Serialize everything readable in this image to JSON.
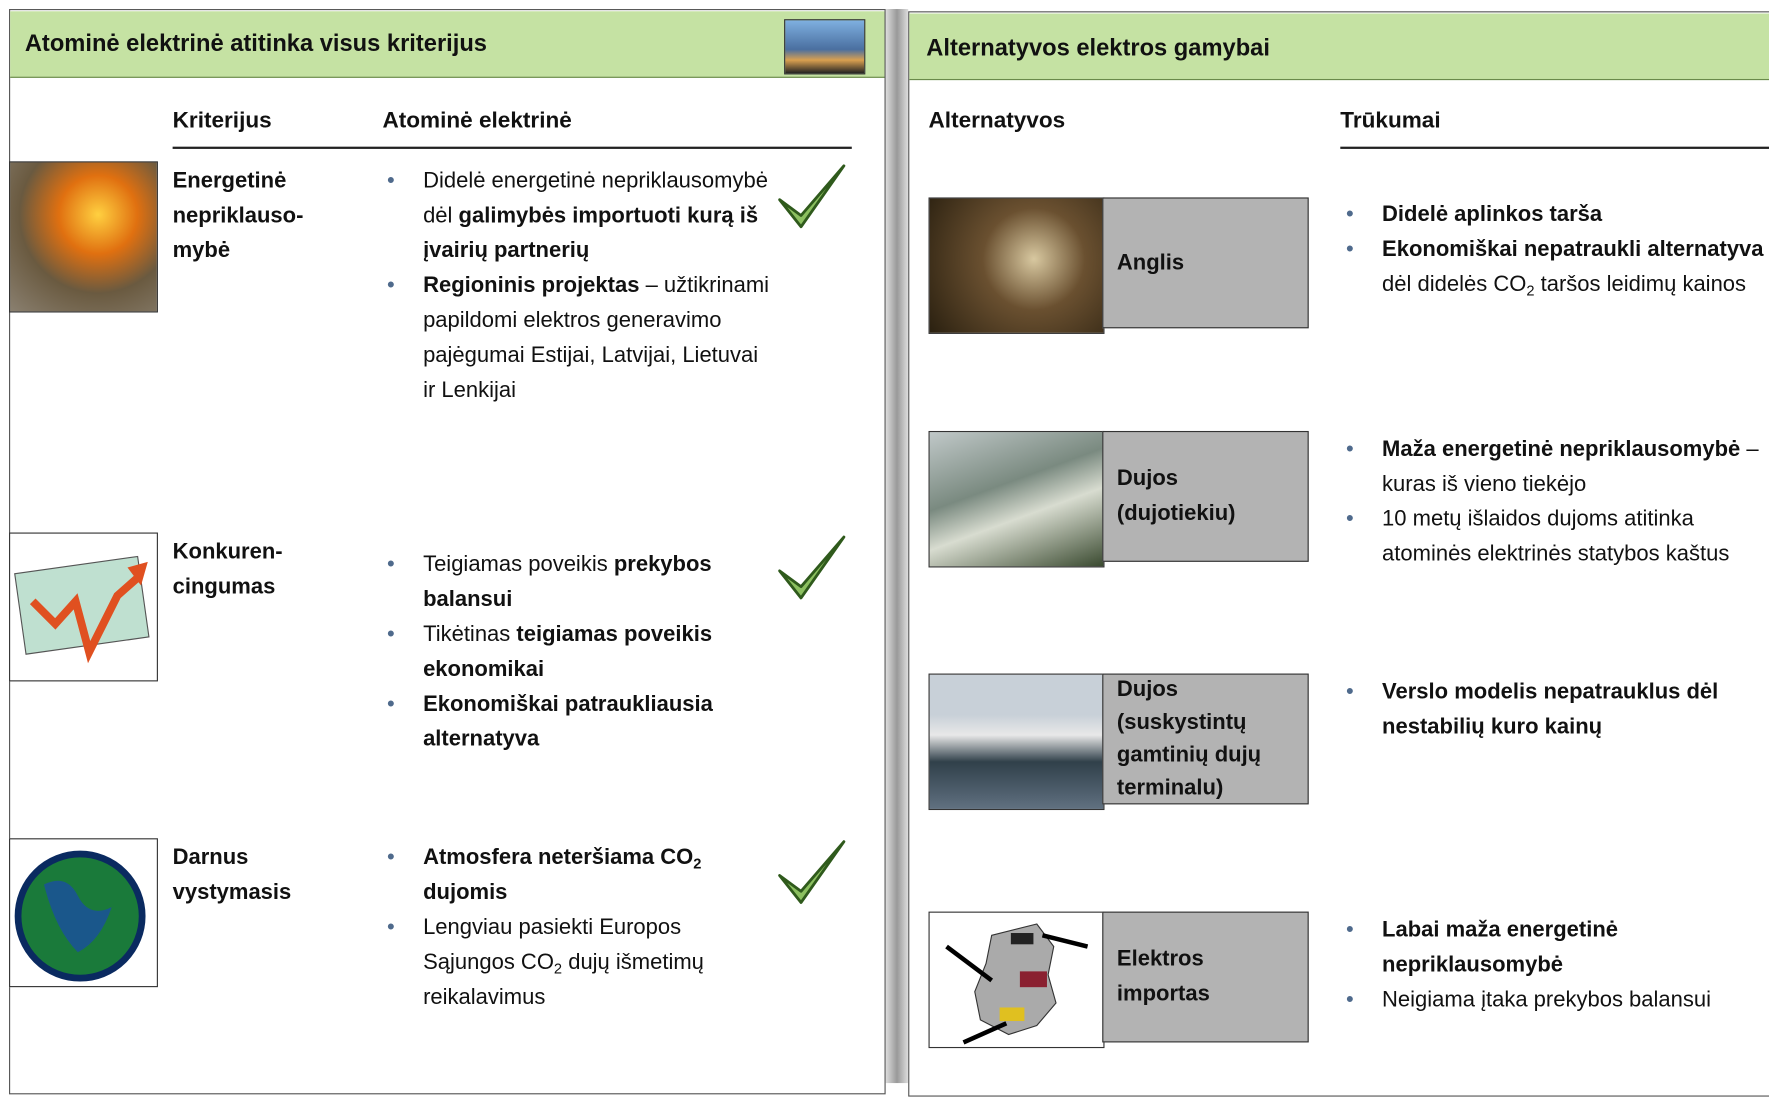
{
  "left": {
    "title": "Atominė elektrinė atitinka visus kriterijus",
    "headers": [
      "Kriterijus",
      "Atominė elektrinė"
    ],
    "rows": [
      {
        "criterion": [
          "Energetinė",
          "nepriklauso-",
          "mybė"
        ],
        "bullets": [
          [
            {
              "text": "Didelė energetinė nepriklausomybė dėl "
            },
            {
              "text": "galimybės importuoti kurą iš įvairių partnerių",
              "bold": true
            }
          ],
          [
            {
              "text": "Regioninis projektas",
              "bold": true
            },
            {
              "text": " – užtikrinami papildomi elektros generavimo pajėgumai Estijai, Latvijai, Lietuvai ir Lenkijai"
            }
          ]
        ]
      },
      {
        "criterion": [
          "Konkuren-",
          "cingumas"
        ],
        "bullets": [
          [
            {
              "text": "Teigiamas poveikis "
            },
            {
              "text": "prekybos balansui",
              "bold": true
            }
          ],
          [
            {
              "text": "Tikėtinas "
            },
            {
              "text": "teigiamas poveikis ekonomikai",
              "bold": true
            }
          ],
          [
            {
              "text": "Ekonomiškai patraukliausia alternatyva",
              "bold": true
            }
          ]
        ]
      },
      {
        "criterion": [
          "Darnus",
          "vystymasis"
        ],
        "bullets": [
          [
            {
              "text": "Atmosfera neteršiama CO",
              "bold": true
            },
            {
              "text": "2",
              "bold": true,
              "sub": true
            },
            {
              "text": " dujomis",
              "bold": true
            }
          ],
          [
            {
              "text": "Lengviau pasiekti Europos Sąjungos CO"
            },
            {
              "text": "2",
              "sub": true
            },
            {
              "text": " dujų išmetimų reikalavimus"
            }
          ]
        ]
      }
    ]
  },
  "right": {
    "title": "Alternatyvos elektros gamybai",
    "headers": [
      "Alternatyvos",
      "Trūkumai"
    ],
    "rows": [
      {
        "label": [
          "Anglis"
        ],
        "bullets": [
          [
            {
              "text": "Didelė aplinkos tarša",
              "bold": true
            }
          ],
          [
            {
              "text": "Ekonomiškai  nepatraukli alternatyva",
              "bold": true
            },
            {
              "text": " dėl didelės CO"
            },
            {
              "text": "2",
              "sub": true
            },
            {
              "text": " taršos leidimų kainos"
            }
          ]
        ]
      },
      {
        "label": [
          "Dujos",
          "(dujotiekiu)"
        ],
        "bullets": [
          [
            {
              "text": "Maža energetinė nepriklausomybė",
              "bold": true
            },
            {
              "text": " – kuras iš vieno tiekėjo"
            }
          ],
          [
            {
              "text": "10 metų išlaidos dujoms atitinka atominės elektrinės statybos kaštus"
            }
          ]
        ]
      },
      {
        "label": [
          "Dujos",
          "(suskystintų",
          "gamtinių dujų",
          "terminalu)"
        ],
        "bullets": [
          [
            {
              "text": "Verslo modelis nepatrauklus dėl nestabilių kuro kainų",
              "bold": true
            }
          ]
        ]
      },
      {
        "label": [
          "Elektros",
          "importas"
        ],
        "bullets": [
          [
            {
              "text": "Labai maža energetinė nepriklausomybė",
              "bold": true
            }
          ],
          [
            {
              "text": "Neigiama įtaka prekybos balansui"
            }
          ]
        ]
      }
    ]
  }
}
